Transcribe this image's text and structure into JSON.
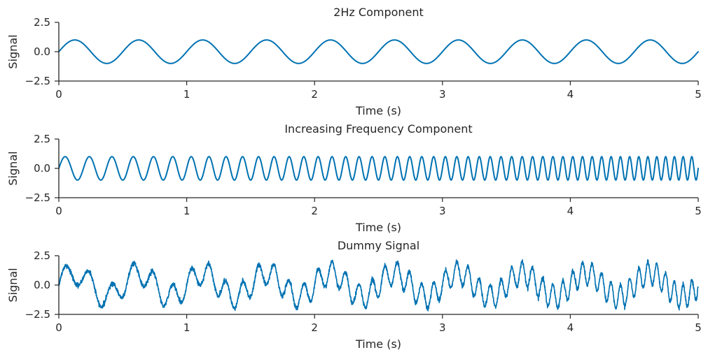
{
  "chart_data": [
    {
      "type": "line",
      "title": "2Hz Component",
      "xlabel": "Time (s)",
      "ylabel": "Signal",
      "xlim": [
        0,
        5
      ],
      "ylim": [
        -2.5,
        2.5
      ],
      "xticks": [
        0,
        1,
        2,
        3,
        4,
        5
      ],
      "yticks": [
        -2.5,
        0.0,
        2.5
      ],
      "xtick_labels": [
        "0",
        "1",
        "2",
        "3",
        "4",
        "5"
      ],
      "ytick_labels": [
        "−2.5",
        "0.0",
        "2.5"
      ],
      "grid": false,
      "series": [
        {
          "color": "#0072b2",
          "function": "sin(2*pi*f*t)",
          "amplitude": 1.0,
          "frequency_hz": 2,
          "t_range": [
            0,
            5
          ]
        }
      ]
    },
    {
      "type": "line",
      "title": "Increasing Frequency Component",
      "xlabel": "Time (s)",
      "ylabel": "Signal",
      "xlim": [
        0,
        5
      ],
      "ylim": [
        -2.5,
        2.5
      ],
      "xticks": [
        0,
        1,
        2,
        3,
        4,
        5
      ],
      "yticks": [
        -2.5,
        0.0,
        2.5
      ],
      "xtick_labels": [
        "0",
        "1",
        "2",
        "3",
        "4",
        "5"
      ],
      "ytick_labels": [
        "−2.5",
        "0.0",
        "2.5"
      ],
      "grid": false,
      "series": [
        {
          "color": "#0072b2",
          "function": "sin(2*pi*(f0*t + k*t^2/2))",
          "amplitude": 1.0,
          "start_frequency_hz": 5,
          "end_frequency_hz": 15,
          "t_range": [
            0,
            5
          ]
        }
      ]
    },
    {
      "type": "line",
      "title": "Dummy Signal",
      "xlabel": "Time (s)",
      "ylabel": "Signal",
      "xlim": [
        0,
        5
      ],
      "ylim": [
        -2.5,
        2.5
      ],
      "xticks": [
        0,
        1,
        2,
        3,
        4,
        5
      ],
      "yticks": [
        -2.5,
        0.0,
        2.5
      ],
      "xtick_labels": [
        "0",
        "1",
        "2",
        "3",
        "4",
        "5"
      ],
      "ytick_labels": [
        "−2.5",
        "0.0",
        "2.5"
      ],
      "grid": false,
      "series": [
        {
          "color": "#0072b2",
          "function": "2Hz component + increasing frequency component + noise",
          "noise_std": 0.1,
          "t_range": [
            0,
            5
          ]
        }
      ]
    }
  ]
}
